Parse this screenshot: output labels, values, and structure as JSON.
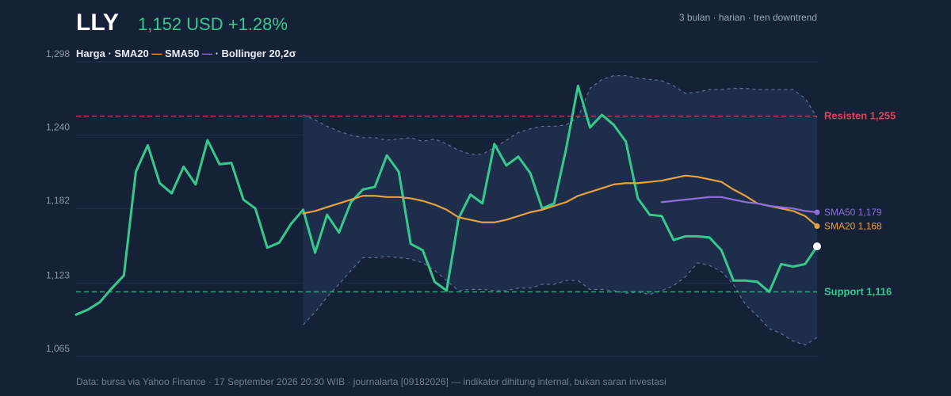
{
  "header": {
    "ticker": "LLY",
    "price_text": "1,152 USD +1.28%",
    "meta": "3 bulan · harian · tren downtrend"
  },
  "legend": {
    "price": "Harga · ",
    "sma20": "SMA20 ",
    "sma20_mark": "—",
    "sma50": " SMA50 ",
    "sma50_mark": "—",
    "bollinger": " · Bollinger 20,2σ"
  },
  "footer": "Data: bursa via Yahoo Finance · 17 September 2026 20:30 WIB · journalarta [09182026] — indikator dihitung internal, bukan saran investasi",
  "colors": {
    "background": "#152137",
    "price": "#35c98e",
    "sma20": "#e7a13f",
    "sma50": "#8f6fe0",
    "band": "#1f2f4d",
    "band_line": "#5c6f95",
    "resistance": "#e0435c",
    "support": "#35c98e"
  },
  "chart_data": {
    "type": "line",
    "ylim": [
      1065,
      1298
    ],
    "yticks": [
      "1,298",
      "1,240",
      "1,182",
      "1,123",
      "1,065"
    ],
    "ytick_values": [
      1298,
      1240,
      1182,
      1123,
      1065
    ],
    "series": [
      {
        "name": "Harga",
        "values": [
          1098,
          1102,
          1108,
          1119,
          1129,
          1211,
          1232,
          1202,
          1194,
          1215,
          1201,
          1236,
          1217,
          1218,
          1189,
          1182,
          1151,
          1155,
          1170,
          1181,
          1147,
          1177,
          1163,
          1187,
          1197,
          1199,
          1224,
          1211,
          1154,
          1149,
          1124,
          1117,
          1174,
          1193,
          1186,
          1233,
          1216,
          1223,
          1210,
          1182,
          1186,
          1229,
          1279,
          1246,
          1256,
          1248,
          1235,
          1190,
          1177,
          1176,
          1157,
          1160,
          1160,
          1159,
          1149,
          1125,
          1125,
          1124,
          1116,
          1138,
          1136,
          1138,
          1152
        ]
      },
      {
        "name": "SMA20",
        "values": [
          null,
          null,
          null,
          null,
          null,
          null,
          null,
          null,
          null,
          null,
          null,
          null,
          null,
          null,
          null,
          null,
          null,
          null,
          null,
          1178,
          1180,
          1183,
          1186,
          1189,
          1192,
          1192,
          1191,
          1191,
          1190,
          1188,
          1185,
          1181,
          1175,
          1173,
          1171,
          1171,
          1173,
          1176,
          1179,
          1181,
          1184,
          1187,
          1192,
          1195,
          1198,
          1201,
          1202,
          1202,
          1203,
          1204,
          1206,
          1208,
          1207,
          1205,
          1203,
          1197,
          1192,
          1186,
          1184,
          1182,
          1180,
          1176,
          1168
        ]
      },
      {
        "name": "SMA50",
        "values": [
          null,
          null,
          null,
          null,
          null,
          null,
          null,
          null,
          null,
          null,
          null,
          null,
          null,
          null,
          null,
          null,
          null,
          null,
          null,
          null,
          null,
          null,
          null,
          null,
          null,
          null,
          null,
          null,
          null,
          null,
          null,
          null,
          null,
          null,
          null,
          null,
          null,
          null,
          null,
          null,
          null,
          null,
          null,
          null,
          null,
          null,
          null,
          null,
          null,
          1187,
          1188,
          1189,
          1190,
          1191,
          1191,
          1189,
          1187,
          1186,
          1184,
          1183,
          1182,
          1180,
          1179
        ]
      },
      {
        "name": "Bollinger upper",
        "values": [
          null,
          null,
          null,
          null,
          null,
          null,
          null,
          null,
          null,
          null,
          null,
          null,
          null,
          null,
          null,
          null,
          null,
          null,
          null,
          1256,
          1252,
          1247,
          1243,
          1240,
          1238,
          1238,
          1236,
          1237,
          1238,
          1235,
          1237,
          1233,
          1228,
          1225,
          1225,
          1230,
          1236,
          1242,
          1245,
          1247,
          1247,
          1248,
          1254,
          1277,
          1284,
          1287,
          1287,
          1285,
          1284,
          1283,
          1279,
          1273,
          1274,
          1276,
          1276,
          1277,
          1277,
          1276,
          1276,
          1276,
          1276,
          1269,
          1254
        ]
      },
      {
        "name": "Bollinger lower",
        "values": [
          null,
          null,
          null,
          null,
          null,
          null,
          null,
          null,
          null,
          null,
          null,
          null,
          null,
          null,
          null,
          null,
          null,
          null,
          null,
          1090,
          1100,
          1112,
          1122,
          1133,
          1143,
          1143,
          1144,
          1143,
          1142,
          1139,
          1133,
          1125,
          1117,
          1118,
          1118,
          1117,
          1117,
          1119,
          1119,
          1122,
          1122,
          1125,
          1125,
          1118,
          1118,
          1117,
          1115,
          1116,
          1114,
          1117,
          1121,
          1128,
          1139,
          1137,
          1132,
          1122,
          1106,
          1097,
          1087,
          1083,
          1077,
          1074,
          1080
        ]
      }
    ],
    "levels": [
      {
        "name": "Resisten",
        "label": "Resisten 1,255",
        "value": 1255
      },
      {
        "name": "Support",
        "label": "Support 1,116",
        "value": 1116
      }
    ],
    "end_labels": [
      {
        "label": "SMA50 1,179",
        "value": 1179
      },
      {
        "label": "SMA20 1,168",
        "value": 1168
      }
    ],
    "last_point": 1152,
    "grid": true
  }
}
